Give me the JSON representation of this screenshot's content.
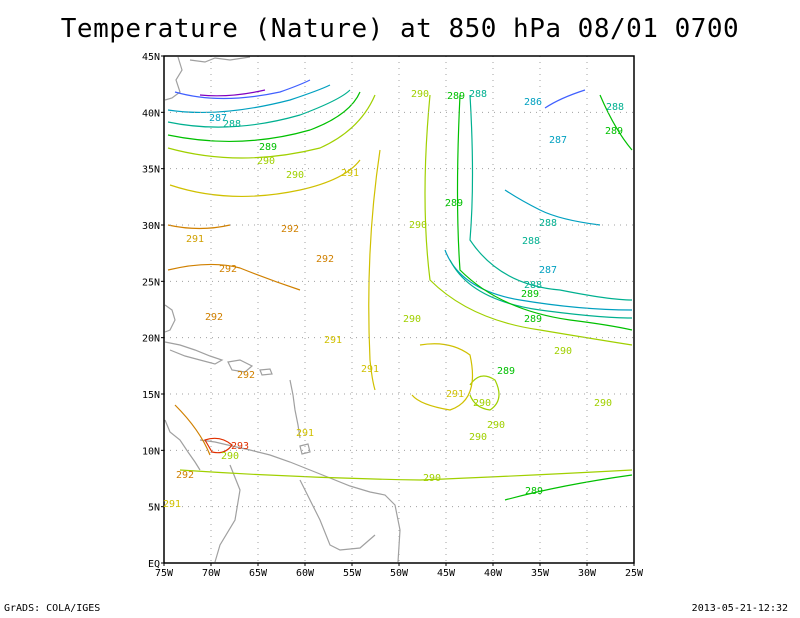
{
  "title": "Temperature (Nature) at 850 hPa 08/01 0700",
  "footer": {
    "left": "GrADS: COLA/IGES",
    "right": "2013-05-21-12:32"
  },
  "axes": {
    "lat_labels": [
      "45N",
      "40N",
      "35N",
      "30N",
      "25N",
      "20N",
      "15N",
      "10N",
      "5N",
      "EQ"
    ],
    "lon_labels": [
      "75W",
      "70W",
      "65W",
      "60W",
      "55W",
      "50W",
      "45W",
      "40W",
      "35W",
      "30W",
      "25W"
    ]
  },
  "contour_labels": [
    {
      "text": "290",
      "color": "#a0d000"
    },
    {
      "text": "289",
      "color": "#00c000"
    },
    {
      "text": "288",
      "color": "#00b090"
    },
    {
      "text": "286",
      "color": "#00a0c0"
    },
    {
      "text": "288",
      "color": "#00b090"
    },
    {
      "text": "289",
      "color": "#00c000"
    },
    {
      "text": "287",
      "color": "#00a0c0"
    },
    {
      "text": "288",
      "color": "#00b090"
    },
    {
      "text": "289",
      "color": "#00c000"
    },
    {
      "text": "290",
      "color": "#a0d000"
    },
    {
      "text": "290",
      "color": "#a0d000"
    },
    {
      "text": "291",
      "color": "#d0c000"
    },
    {
      "text": "287",
      "color": "#00a0c0"
    },
    {
      "text": "289",
      "color": "#00c000"
    },
    {
      "text": "291",
      "color": "#d0a000"
    },
    {
      "text": "292",
      "color": "#d08000"
    },
    {
      "text": "292",
      "color": "#d08000"
    },
    {
      "text": "290",
      "color": "#a0d000"
    },
    {
      "text": "288",
      "color": "#00b090"
    },
    {
      "text": "288",
      "color": "#00b090"
    },
    {
      "text": "292",
      "color": "#d08000"
    },
    {
      "text": "287",
      "color": "#00a0c0"
    },
    {
      "text": "288",
      "color": "#00b090"
    },
    {
      "text": "289",
      "color": "#00c000"
    },
    {
      "text": "292",
      "color": "#d08000"
    },
    {
      "text": "290",
      "color": "#a0d000"
    },
    {
      "text": "289",
      "color": "#00c000"
    },
    {
      "text": "291",
      "color": "#d0c000"
    },
    {
      "text": "290",
      "color": "#a0d000"
    },
    {
      "text": "292",
      "color": "#d08000"
    },
    {
      "text": "291",
      "color": "#d0c000"
    },
    {
      "text": "289",
      "color": "#00c000"
    },
    {
      "text": "291",
      "color": "#d0c000"
    },
    {
      "text": "290",
      "color": "#a0d000"
    },
    {
      "text": "290",
      "color": "#a0d000"
    },
    {
      "text": "290",
      "color": "#a0d000"
    },
    {
      "text": "291",
      "color": "#d0c000"
    },
    {
      "text": "290",
      "color": "#a0d000"
    },
    {
      "text": "293",
      "color": "#e03000"
    },
    {
      "text": "290",
      "color": "#a0d000"
    },
    {
      "text": "292",
      "color": "#d08000"
    },
    {
      "text": "290",
      "color": "#a0d000"
    },
    {
      "text": "289",
      "color": "#00c000"
    },
    {
      "text": "291",
      "color": "#d0c000"
    }
  ]
}
